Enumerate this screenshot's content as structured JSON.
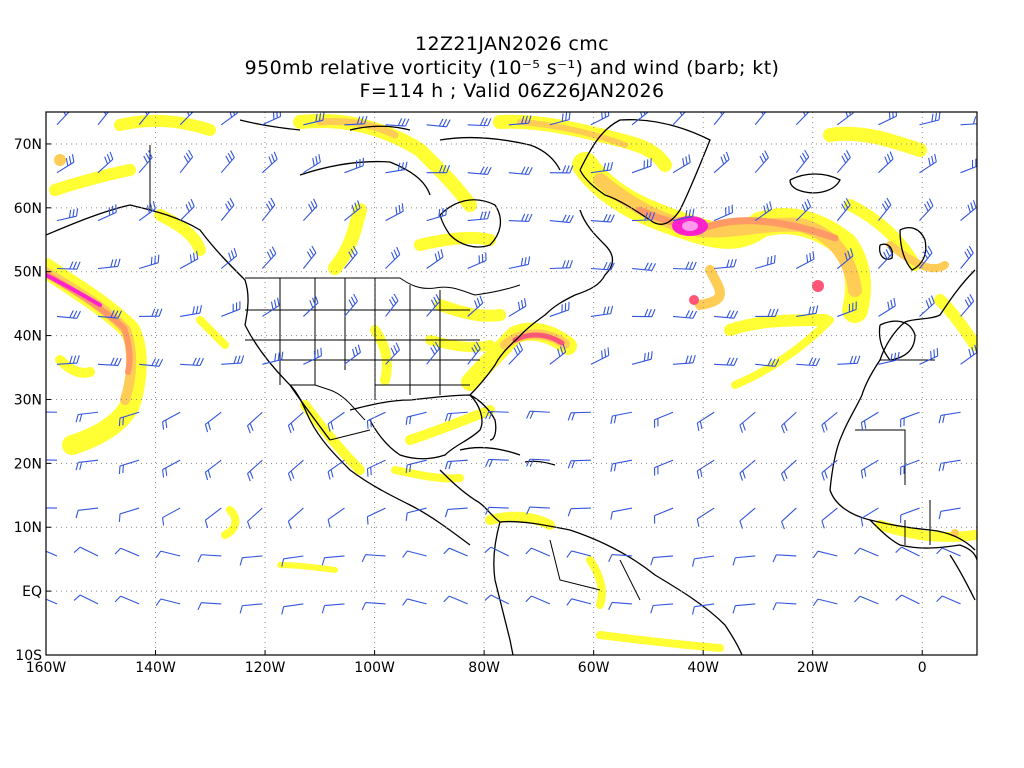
{
  "title": {
    "line1": "12Z21JAN2026 cmc",
    "line2": "950mb relative vorticity (10⁻⁵ s⁻¹) and wind (barb; kt)",
    "line3": "F=114 h ; Valid 06Z26JAN2026"
  },
  "map": {
    "lon_range": [
      -160,
      10
    ],
    "lat_range": [
      -10,
      75
    ],
    "lon_ticks": [
      {
        "value": -160,
        "label": "160W"
      },
      {
        "value": -140,
        "label": "140W"
      },
      {
        "value": -120,
        "label": "120W"
      },
      {
        "value": -100,
        "label": "100W"
      },
      {
        "value": -80,
        "label": "80W"
      },
      {
        "value": -60,
        "label": "60W"
      },
      {
        "value": -40,
        "label": "40W"
      },
      {
        "value": -20,
        "label": "20W"
      },
      {
        "value": 0,
        "label": "0"
      }
    ],
    "lat_ticks": [
      {
        "value": 70,
        "label": "70N"
      },
      {
        "value": 60,
        "label": "60N"
      },
      {
        "value": 50,
        "label": "50N"
      },
      {
        "value": 40,
        "label": "40N"
      },
      {
        "value": 30,
        "label": "30N"
      },
      {
        "value": 20,
        "label": "20N"
      },
      {
        "value": 10,
        "label": "10N"
      },
      {
        "value": 0,
        "label": "EQ"
      },
      {
        "value": -10,
        "label": "10S"
      }
    ],
    "gridlines": "dotted",
    "colors": {
      "coast": "#000000",
      "grid": "#888888",
      "barb": "#3355dd",
      "vort_1": "#ffff33",
      "vort_2": "#ffcc55",
      "vort_3": "#ff9966",
      "vort_4": "#ff5577",
      "vort_5": "#ff22cc"
    }
  }
}
